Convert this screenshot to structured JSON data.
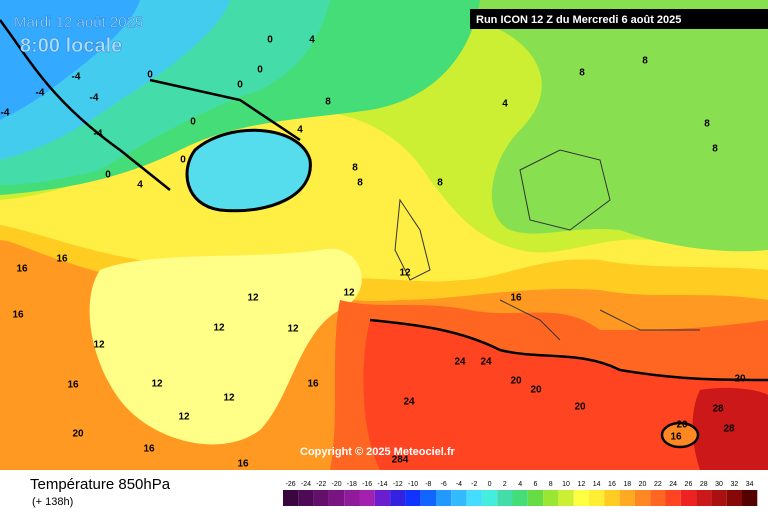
{
  "header": {
    "date": "Mardi 12 août 2025",
    "time": "8:00 locale",
    "run": "Run ICON 12 Z du Mercredi 6 août 2025"
  },
  "copyright": "Copyright © 2025 Meteociel.fr",
  "footer": {
    "title": "Température 850hPa",
    "lead": "(+ 138h)"
  },
  "scale": [
    {
      "label": "-26",
      "color": "#3a0640"
    },
    {
      "label": "-24",
      "color": "#4e0a55"
    },
    {
      "label": "-22",
      "color": "#640f6c"
    },
    {
      "label": "-20",
      "color": "#7a1484"
    },
    {
      "label": "-18",
      "color": "#8f1a9a"
    },
    {
      "label": "-16",
      "color": "#a320b0"
    },
    {
      "label": "-14",
      "color": "#6a1ed0"
    },
    {
      "label": "-12",
      "color": "#3322e0"
    },
    {
      "label": "-10",
      "color": "#1133ff"
    },
    {
      "label": "-8",
      "color": "#1166ff"
    },
    {
      "label": "-6",
      "color": "#2299ff"
    },
    {
      "label": "-4",
      "color": "#33bbff"
    },
    {
      "label": "-2",
      "color": "#44ddff"
    },
    {
      "label": "0",
      "color": "#44eedd"
    },
    {
      "label": "2",
      "color": "#44ddaa"
    },
    {
      "label": "4",
      "color": "#44dd77"
    },
    {
      "label": "6",
      "color": "#66dd44"
    },
    {
      "label": "8",
      "color": "#99e633"
    },
    {
      "label": "10",
      "color": "#ccee33"
    },
    {
      "label": "12",
      "color": "#ffff44"
    },
    {
      "label": "14",
      "color": "#ffee33"
    },
    {
      "label": "16",
      "color": "#ffcc22"
    },
    {
      "label": "18",
      "color": "#ffaa22"
    },
    {
      "label": "20",
      "color": "#ff8822"
    },
    {
      "label": "22",
      "color": "#ff6622"
    },
    {
      "label": "24",
      "color": "#ff4422"
    },
    {
      "label": "26",
      "color": "#ee2222"
    },
    {
      "label": "28",
      "color": "#cc1818"
    },
    {
      "label": "30",
      "color": "#aa1010"
    },
    {
      "label": "32",
      "color": "#880808"
    },
    {
      "label": "34",
      "color": "#550000"
    }
  ],
  "map_labels": [
    "-4",
    "-4",
    "-4",
    "-4",
    "-4",
    "0",
    "0",
    "0",
    "0",
    "0",
    "0",
    "0",
    "4",
    "4",
    "4",
    "4",
    "8",
    "8",
    "8",
    "8",
    "8",
    "8",
    "8",
    "8",
    "12",
    "12",
    "12",
    "12",
    "12",
    "12",
    "12",
    "12",
    "12",
    "16",
    "16",
    "16",
    "16",
    "16",
    "16",
    "16",
    "20",
    "20",
    "20",
    "20",
    "20",
    "24",
    "24",
    "24",
    "28",
    "28",
    "20",
    "16",
    "16",
    "284"
  ]
}
